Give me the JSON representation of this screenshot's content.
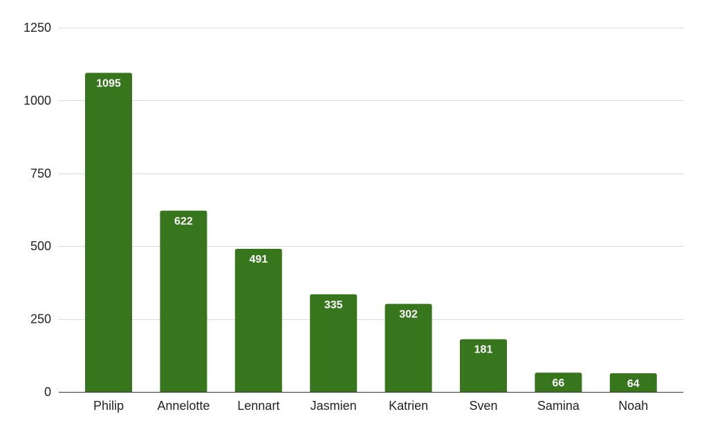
{
  "chart_data": {
    "type": "bar",
    "categories": [
      "Philip",
      "Annelotte",
      "Lennart",
      "Jasmien",
      "Katrien",
      "Sven",
      "Samina",
      "Noah"
    ],
    "values": [
      1095,
      622,
      491,
      335,
      302,
      181,
      66,
      64
    ],
    "data_labels": [
      "1095",
      "622",
      "491",
      "335",
      "302",
      "181",
      "66",
      "64"
    ],
    "title": "",
    "xlabel": "",
    "ylabel": "",
    "ylim": [
      0,
      1250
    ],
    "yticks": [
      0,
      250,
      500,
      750,
      1000,
      1250
    ],
    "ytick_labels": [
      "0",
      "250",
      "500",
      "750",
      "1000",
      "1250"
    ],
    "grid": true,
    "legend": "none",
    "bar_color": "#38761d",
    "label_color": "#ffffff",
    "grid_color": "#d9d9d9"
  }
}
